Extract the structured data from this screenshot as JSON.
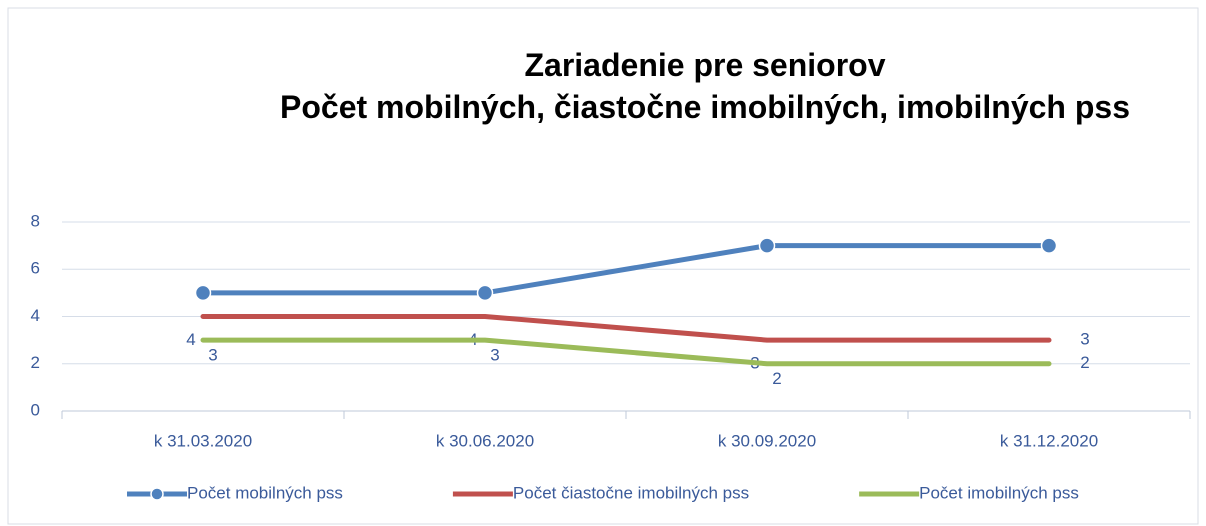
{
  "chart_data": {
    "type": "line",
    "title": "Zariadenie pre seniorov",
    "subtitle": "Počet mobilných, čiastočne imobilných, imobilných pss",
    "categories": [
      "k 31.03.2020",
      "k 30.06.2020",
      "k 30.09.2020",
      "k 31.12.2020"
    ],
    "series": [
      {
        "name": "Počet mobilných pss",
        "color": "#4f81bd",
        "values": [
          5,
          5,
          7,
          7
        ],
        "marker": "circle",
        "data_labels": false
      },
      {
        "name": "Počet čiastočne imobilných pss",
        "color": "#c0504d",
        "values": [
          4,
          4,
          3,
          3
        ],
        "marker": "none",
        "data_labels": true
      },
      {
        "name": "Počet imobilných pss",
        "color": "#9bbb59",
        "values": [
          3,
          3,
          2,
          2
        ],
        "marker": "none",
        "data_labels": true
      }
    ],
    "ylim": [
      0,
      8
    ],
    "yticks": [
      0,
      2,
      4,
      6,
      8
    ],
    "grid": true,
    "legend": "bottom"
  }
}
